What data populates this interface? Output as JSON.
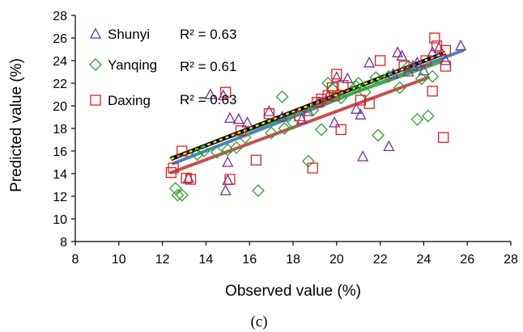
{
  "chart_data": {
    "type": "scatter",
    "xlabel": "Observed value (%)",
    "ylabel": "Predicted value (%)",
    "caption": "(c)",
    "xlim": [
      8,
      28
    ],
    "ylim": [
      8,
      28
    ],
    "x_ticks": [
      "8",
      "10",
      "12",
      "14",
      "16",
      "18",
      "20",
      "22",
      "24",
      "26",
      "28"
    ],
    "y_ticks": [
      "8",
      "10",
      "12",
      "14",
      "16",
      "18",
      "20",
      "22",
      "24",
      "26",
      "28"
    ],
    "grid": false,
    "legend_position": "top-left",
    "series": [
      {
        "name": "Shunyi",
        "r2_label": "R² = 0.63",
        "marker": "triangle",
        "color": "#7030a0",
        "fit": [
          [
            12.5,
            14.9
          ],
          [
            25.8,
            24.9
          ]
        ],
        "points": [
          [
            13.2,
            13.6
          ],
          [
            14.2,
            21.0
          ],
          [
            14.8,
            20.9
          ],
          [
            14.9,
            12.5
          ],
          [
            15.0,
            13.4
          ],
          [
            15.0,
            15.0
          ],
          [
            15.1,
            18.9
          ],
          [
            15.5,
            18.8
          ],
          [
            15.9,
            18.5
          ],
          [
            16.9,
            19.5
          ],
          [
            17.5,
            19.0
          ],
          [
            18.4,
            18.8
          ],
          [
            18.7,
            19.5
          ],
          [
            19.2,
            20.3
          ],
          [
            19.6,
            20.8
          ],
          [
            19.9,
            18.5
          ],
          [
            20.0,
            22.5
          ],
          [
            20.5,
            22.4
          ],
          [
            20.9,
            19.7
          ],
          [
            21.1,
            19.2
          ],
          [
            21.2,
            15.5
          ],
          [
            21.5,
            23.8
          ],
          [
            22.4,
            16.4
          ],
          [
            22.6,
            22.8
          ],
          [
            22.8,
            24.7
          ],
          [
            23.0,
            24.4
          ],
          [
            23.3,
            23.0
          ],
          [
            23.5,
            23.5
          ],
          [
            23.7,
            23.8
          ],
          [
            24.0,
            23.1
          ],
          [
            24.4,
            24.7
          ],
          [
            24.7,
            25.1
          ],
          [
            25.0,
            24.0
          ],
          [
            25.7,
            25.3
          ]
        ]
      },
      {
        "name": "Yanqing",
        "r2_label": "R² = 0.61",
        "marker": "diamond",
        "color": "#2ca02c",
        "fit": [
          [
            12.4,
            15.4
          ],
          [
            24.8,
            23.9
          ]
        ],
        "points": [
          [
            12.6,
            12.7
          ],
          [
            12.7,
            12.1
          ],
          [
            12.9,
            12.1
          ],
          [
            13.6,
            15.7
          ],
          [
            13.9,
            16.0
          ],
          [
            14.5,
            15.9
          ],
          [
            15.0,
            16.1
          ],
          [
            15.4,
            16.3
          ],
          [
            15.8,
            17.2
          ],
          [
            16.4,
            12.5
          ],
          [
            17.0,
            17.6
          ],
          [
            17.5,
            20.8
          ],
          [
            17.6,
            18.0
          ],
          [
            18.0,
            18.5
          ],
          [
            18.7,
            15.1
          ],
          [
            18.9,
            19.6
          ],
          [
            19.3,
            17.9
          ],
          [
            19.6,
            22.0
          ],
          [
            19.8,
            21.5
          ],
          [
            20.2,
            20.7
          ],
          [
            20.9,
            21.7
          ],
          [
            21.0,
            22.0
          ],
          [
            21.3,
            21.2
          ],
          [
            21.8,
            22.5
          ],
          [
            21.9,
            17.4
          ],
          [
            22.4,
            22.6
          ],
          [
            22.9,
            21.6
          ],
          [
            23.3,
            23.5
          ],
          [
            23.7,
            18.8
          ],
          [
            23.9,
            22.4
          ],
          [
            24.2,
            19.1
          ],
          [
            24.4,
            22.6
          ]
        ]
      },
      {
        "name": "Daxing",
        "r2_label": "R² = 0.63",
        "marker": "square",
        "color": "#e02020",
        "fit": [
          [
            12.4,
            14.1
          ],
          [
            24.2,
            22.5
          ]
        ],
        "points": [
          [
            12.4,
            14.1
          ],
          [
            12.5,
            14.5
          ],
          [
            12.9,
            16.0
          ],
          [
            13.1,
            13.6
          ],
          [
            13.3,
            13.5
          ],
          [
            14.9,
            21.2
          ],
          [
            15.1,
            13.5
          ],
          [
            15.6,
            17.8
          ],
          [
            16.3,
            15.2
          ],
          [
            16.9,
            19.3
          ],
          [
            18.3,
            19.1
          ],
          [
            18.9,
            14.5
          ],
          [
            19.1,
            20.3
          ],
          [
            19.3,
            20.6
          ],
          [
            19.6,
            20.9
          ],
          [
            19.8,
            21.6
          ],
          [
            19.9,
            20.9
          ],
          [
            20.0,
            22.8
          ],
          [
            20.2,
            17.9
          ],
          [
            20.3,
            21.8
          ],
          [
            21.1,
            20.5
          ],
          [
            21.5,
            20.2
          ],
          [
            22.0,
            24.0
          ],
          [
            23.1,
            23.5
          ],
          [
            24.1,
            24.0
          ],
          [
            24.4,
            21.3
          ],
          [
            24.5,
            26.0
          ],
          [
            24.6,
            25.3
          ],
          [
            24.9,
            17.2
          ],
          [
            25.0,
            24.9
          ],
          [
            25.0,
            23.5
          ]
        ]
      }
    ],
    "trend_line": {
      "style": "dashed",
      "fit": [
        [
          12.4,
          15.3
        ],
        [
          25.0,
          24.7
        ]
      ]
    }
  }
}
